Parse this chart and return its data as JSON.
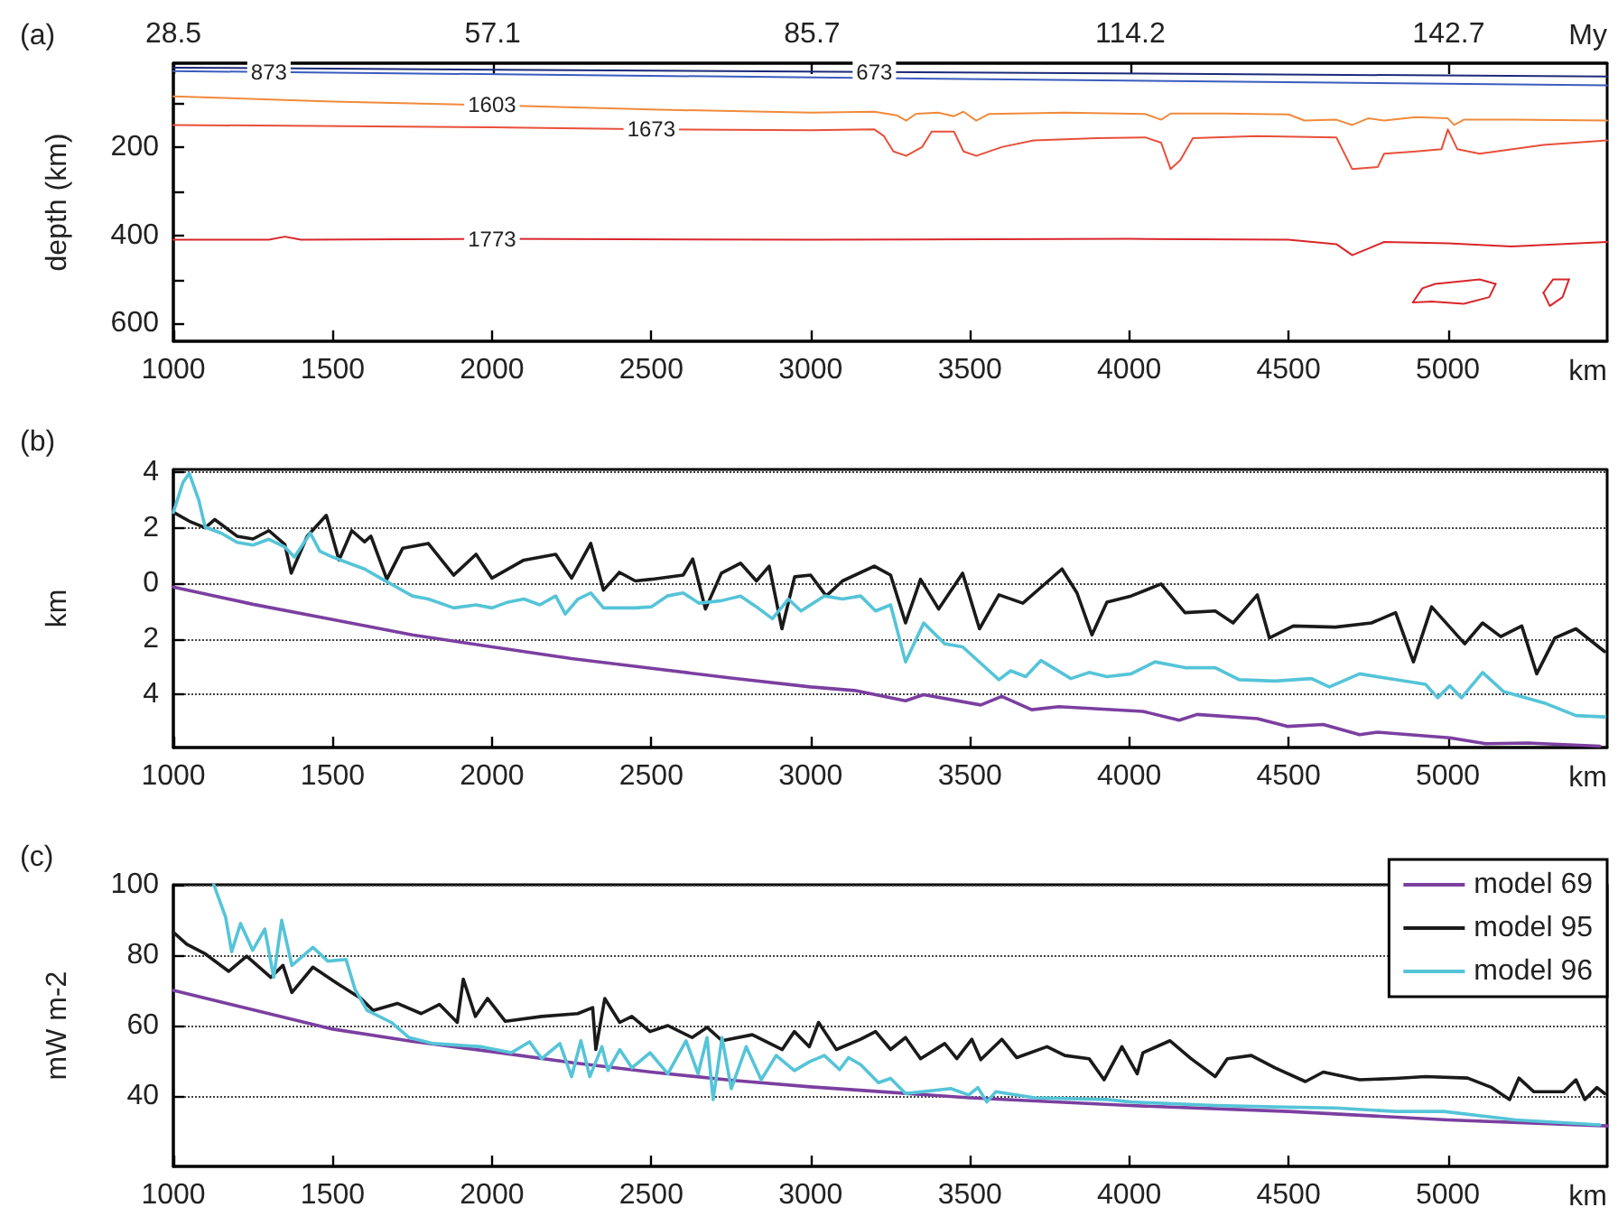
{
  "chart_data": [
    {
      "type": "line",
      "title": "(a)",
      "xlabel": "km",
      "ylabel": "depth (km)",
      "x2label": "My",
      "xlim": [
        1000,
        5500
      ],
      "xticks": [
        1000,
        1500,
        2000,
        2500,
        3000,
        3500,
        4000,
        4500,
        5000
      ],
      "x2lim": [
        28.5,
        156.9
      ],
      "x2ticks": [
        28.5,
        57.1,
        85.7,
        114.2,
        142.7
      ],
      "ylim": [
        640,
        10
      ],
      "yticks": [
        {
          "value": 100,
          "label": null
        },
        200,
        {
          "value": 300,
          "label": null
        },
        400,
        {
          "value": 500,
          "label": null
        },
        600
      ],
      "series": [
        {
          "name": "673",
          "color": "#1c2a7a",
          "x": [
            1000,
            3200,
            5500
          ],
          "values": [
            20,
            30,
            40
          ]
        },
        {
          "name": "873",
          "color": "#3b5bbf",
          "x": [
            1000,
            1300,
            5500
          ],
          "values": [
            28,
            30,
            60
          ]
        },
        {
          "name": "1603",
          "color": "#f08a3c",
          "x": [
            1000,
            1500,
            2000,
            2500,
            3000,
            3200,
            3270,
            3300,
            3330,
            3400,
            3450,
            3480,
            3520,
            3560,
            3800,
            4050,
            4100,
            4130,
            4300,
            4500,
            4550,
            4650,
            4700,
            4750,
            4800,
            4900,
            5000,
            5020,
            5050,
            5200,
            5500
          ],
          "values": [
            85,
            97,
            105,
            115,
            122,
            120,
            128,
            140,
            125,
            122,
            130,
            120,
            140,
            125,
            122,
            125,
            138,
            124,
            124,
            126,
            140,
            138,
            150,
            135,
            140,
            132,
            135,
            150,
            138,
            138,
            140
          ]
        },
        {
          "name": "1673",
          "color": "#e8503a",
          "x": [
            1000,
            2000,
            2500,
            3000,
            3200,
            3230,
            3260,
            3300,
            3350,
            3380,
            3450,
            3480,
            3520,
            3600,
            3700,
            3900,
            4050,
            4100,
            4130,
            4160,
            4200,
            4400,
            4650,
            4700,
            4780,
            4800,
            4900,
            4980,
            5000,
            5030,
            5100,
            5300,
            5500
          ],
          "values": [
            150,
            155,
            160,
            162,
            160,
            175,
            210,
            220,
            200,
            165,
            165,
            210,
            220,
            200,
            185,
            180,
            178,
            190,
            250,
            230,
            180,
            175,
            178,
            250,
            245,
            215,
            210,
            205,
            160,
            205,
            215,
            195,
            185
          ]
        },
        {
          "name": "1773",
          "color": "#d9262a",
          "x": [
            1000,
            1300,
            1350,
            1400,
            2000,
            3000,
            4000,
            4500,
            4650,
            4700,
            4750,
            4800,
            5000,
            5200,
            5500
          ],
          "values": [
            410,
            410,
            403,
            410,
            408,
            410,
            408,
            410,
            420,
            445,
            430,
            415,
            418,
            425,
            415
          ]
        },
        {
          "color": "#d9262a",
          "x": [
            4890,
            4920,
            4960,
            5100,
            5150
          ],
          "values": [
            552,
            520,
            510,
            500,
            510
          ]
        },
        {
          "color": "#d9262a",
          "x": [
            4890,
            4950,
            5050,
            5130,
            5150
          ],
          "values": [
            552,
            550,
            555,
            540,
            510
          ]
        },
        {
          "color": "#d9262a",
          "x": [
            5300,
            5330,
            5380
          ],
          "values": [
            530,
            500,
            500
          ]
        },
        {
          "color": "#d9262a",
          "x": [
            5300,
            5320,
            5360,
            5380
          ],
          "values": [
            530,
            560,
            540,
            500
          ]
        }
      ]
    },
    {
      "type": "line",
      "title": "(b)",
      "xlabel": "km",
      "ylabel": "km",
      "xlim": [
        1000,
        5500
      ],
      "xticks": [
        1000,
        1500,
        2000,
        2500,
        3000,
        3500,
        4000,
        4500,
        5000
      ],
      "ylim": [
        -5.9,
        4.1
      ],
      "yticks": [
        {
          "value": -4,
          "label": "4"
        },
        {
          "value": -2,
          "label": "2"
        },
        0,
        2,
        4
      ],
      "grid": "y",
      "series": [
        {
          "color": "#7b3fa0",
          "x": [
            1000,
            1250,
            1500,
            1750,
            2000,
            2250,
            2500,
            2750,
            3000,
            3138,
            3298,
            3355,
            3534,
            3600,
            3694,
            3779,
            4043,
            4157,
            4213,
            4402,
            4496,
            4609,
            4723,
            4779,
            5006,
            5119,
            5251,
            5477
          ],
          "values": [
            -0.13,
            -0.75,
            -1.3,
            -1.85,
            -2.28,
            -2.7,
            -3.05,
            -3.4,
            -3.72,
            -3.85,
            -4.22,
            -4.0,
            -4.37,
            -4.06,
            -4.54,
            -4.43,
            -4.6,
            -4.92,
            -4.71,
            -4.86,
            -5.14,
            -5.07,
            -5.44,
            -5.35,
            -5.55,
            -5.76,
            -5.74,
            -5.85
          ]
        },
        {
          "color": "#1a1a1a",
          "x": [
            1000,
            1050,
            1100,
            1130,
            1200,
            1250,
            1300,
            1350,
            1370,
            1420,
            1480,
            1520,
            1560,
            1600,
            1620,
            1670,
            1720,
            1800,
            1880,
            1950,
            2000,
            2100,
            2200,
            2250,
            2310,
            2350,
            2400,
            2450,
            2500,
            2600,
            2630,
            2670,
            2720,
            2780,
            2830,
            2870,
            2910,
            2950,
            3000,
            3049,
            3100,
            3200,
            3251,
            3298,
            3345,
            3402,
            3477,
            3530,
            3591,
            3666,
            3789,
            3836,
            3883,
            3930,
            4006,
            4100,
            4175,
            4270,
            4326,
            4402,
            4440,
            4515,
            4647,
            4760,
            4836,
            4892,
            4949,
            5053,
            5109,
            5166,
            5232,
            5279,
            5336,
            5402,
            5492
          ],
          "values": [
            2.56,
            2.24,
            2.0,
            2.3,
            1.7,
            1.6,
            1.9,
            1.4,
            0.37,
            1.7,
            2.45,
            0.84,
            1.9,
            1.5,
            1.7,
            0.15,
            1.27,
            1.44,
            0.3,
            1.05,
            0.19,
            0.84,
            1.05,
            0.19,
            1.44,
            -0.24,
            0.4,
            0.09,
            0.15,
            0.3,
            0.88,
            -0.92,
            0.37,
            0.73,
            0.09,
            0.62,
            -1.63,
            0.24,
            0.3,
            -0.45,
            0.09,
            0.62,
            0.3,
            -1.42,
            0.15,
            -0.92,
            0.37,
            -1.63,
            -0.41,
            -0.71,
            0.52,
            -0.34,
            -1.85,
            -0.67,
            -0.45,
            -0.02,
            -1.05,
            -0.99,
            -1.42,
            -0.41,
            -1.96,
            -1.53,
            -1.57,
            -1.42,
            -1.05,
            -2.82,
            -0.84,
            -2.17,
            -1.42,
            -1.91,
            -1.53,
            -3.25,
            -1.96,
            -1.63,
            -2.45
          ]
        },
        {
          "color": "#55c4d8",
          "x": [
            1000,
            1030,
            1050,
            1080,
            1100,
            1150,
            1200,
            1250,
            1300,
            1350,
            1380,
            1430,
            1460,
            1500,
            1550,
            1600,
            1650,
            1700,
            1750,
            1800,
            1880,
            1950,
            2000,
            2050,
            2100,
            2150,
            2200,
            2230,
            2270,
            2310,
            2350,
            2450,
            2500,
            2550,
            2600,
            2650,
            2720,
            2780,
            2830,
            2880,
            2930,
            2970,
            3043,
            3100,
            3157,
            3204,
            3251,
            3298,
            3355,
            3421,
            3477,
            3591,
            3628,
            3675,
            3723,
            3817,
            3874,
            3930,
            4006,
            4081,
            4175,
            4270,
            4345,
            4458,
            4572,
            4628,
            4723,
            4836,
            4930,
            4968,
            5006,
            5043,
            5109,
            5175,
            5308,
            5402,
            5492
          ],
          "values": [
            2.56,
            3.63,
            3.96,
            2.99,
            2.02,
            1.81,
            1.48,
            1.38,
            1.59,
            1.31,
            0.95,
            1.81,
            1.16,
            0.95,
            0.73,
            0.52,
            0.19,
            -0.13,
            -0.45,
            -0.56,
            -0.88,
            -0.77,
            -0.88,
            -0.67,
            -0.56,
            -0.77,
            -0.45,
            -1.1,
            -0.56,
            -0.34,
            -0.88,
            -0.88,
            -0.84,
            -0.45,
            -0.34,
            -0.71,
            -0.62,
            -0.45,
            -0.84,
            -1.27,
            -0.56,
            -0.99,
            -0.45,
            -0.56,
            -0.45,
            -0.99,
            -0.77,
            -2.82,
            -1.42,
            -2.17,
            -2.28,
            -3.46,
            -3.14,
            -3.35,
            -2.77,
            -3.42,
            -3.2,
            -3.35,
            -3.25,
            -2.82,
            -3.03,
            -3.03,
            -3.46,
            -3.51,
            -3.42,
            -3.72,
            -3.25,
            -3.46,
            -3.63,
            -4.11,
            -3.68,
            -4.11,
            -3.2,
            -3.89,
            -4.32,
            -4.75,
            -4.8
          ]
        }
      ]
    },
    {
      "type": "line",
      "title": "(c)",
      "xlabel": "km",
      "ylabel": "mW m-2",
      "xlim": [
        1000,
        5500
      ],
      "xticks": [
        1000,
        1500,
        2000,
        2500,
        3000,
        3500,
        4000,
        4500,
        5000
      ],
      "ylim": [
        20,
        100
      ],
      "yticks": [
        40,
        60,
        80,
        100
      ],
      "grid": "y",
      "legend": "top right",
      "series": [
        {
          "name": "model 69",
          "color": "#7b3fa0",
          "x": [
            1000,
            1250,
            1500,
            1750,
            2000,
            2250,
            2500,
            2750,
            3000,
            3500,
            4000,
            4500,
            5000,
            5500
          ],
          "values": [
            70,
            64.5,
            59,
            55.5,
            52.6,
            49.5,
            46.8,
            44.5,
            42.6,
            39.5,
            37.3,
            35.6,
            33.2,
            31.5
          ]
        },
        {
          "name": "model 95",
          "color": "#1a1a1a",
          "x": [
            1000,
            1042,
            1098,
            1174,
            1230,
            1306,
            1344,
            1372,
            1438,
            1514,
            1589,
            1627,
            1703,
            1778,
            1835,
            1891,
            1910,
            1948,
            1986,
            2042,
            2156,
            2269,
            2316,
            2326,
            2354,
            2401,
            2439,
            2496,
            2552,
            2628,
            2675,
            2722,
            2817,
            2911,
            2949,
            2996,
            3025,
            3081,
            3157,
            3204,
            3251,
            3298,
            3345,
            3421,
            3459,
            3506,
            3534,
            3600,
            3647,
            3742,
            3798,
            3874,
            3921,
            3977,
            4025,
            4043,
            4128,
            4194,
            4270,
            4308,
            4383,
            4458,
            4553,
            4609,
            4723,
            4836,
            4930,
            5062,
            5138,
            5194,
            5223,
            5270,
            5364,
            5402,
            5430,
            5468,
            5492
          ],
          "values": [
            86.5,
            83.1,
            80.5,
            75.4,
            79.7,
            73.7,
            77.1,
            69.4,
            76.6,
            72,
            67.7,
            64.3,
            66.3,
            63.4,
            66,
            60.9,
            73.2,
            62.6,
            67.7,
            61.2,
            62.6,
            63.4,
            65.1,
            53.2,
            67.7,
            60.9,
            62.6,
            58.3,
            60,
            56.6,
            59.5,
            55.7,
            57.4,
            53.2,
            58.3,
            54,
            60.9,
            53.2,
            56.1,
            58.3,
            53.2,
            56.6,
            50.6,
            54.9,
            50.6,
            56.1,
            50.3,
            56.1,
            50.9,
            54,
            51.5,
            50.6,
            44.6,
            54,
            46.3,
            52.3,
            55.7,
            50.6,
            45.5,
            50.6,
            51.5,
            48,
            44.1,
            46.8,
            44.6,
            45,
            45.5,
            45.1,
            42.4,
            39,
            45.1,
            41.2,
            41.2,
            44.6,
            39,
            42.4,
            40.7
          ]
        },
        {
          "name": "model 96",
          "color": "#55c4d8",
          "x": [
            1127,
            1164,
            1183,
            1211,
            1249,
            1287,
            1315,
            1340,
            1372,
            1438,
            1485,
            1542,
            1570,
            1608,
            1684,
            1740,
            1816,
            1967,
            2061,
            2118,
            2156,
            2213,
            2250,
            2279,
            2307,
            2345,
            2364,
            2401,
            2439,
            2496,
            2552,
            2609,
            2647,
            2675,
            2694,
            2722,
            2751,
            2798,
            2845,
            2892,
            2949,
            2996,
            3043,
            3091,
            3119,
            3157,
            3213,
            3251,
            3298,
            3440,
            3496,
            3525,
            3553,
            3581,
            3704,
            3930,
            4006,
            4270,
            4458,
            4647,
            4836,
            4987,
            5213,
            5477
          ],
          "values": [
            100,
            90.8,
            81,
            89,
            81.4,
            87.4,
            73.7,
            89.9,
            77.1,
            82.2,
            78.3,
            78.8,
            70.3,
            64.3,
            60.9,
            56.6,
            54.9,
            54,
            52.3,
            55.4,
            50.6,
            54.9,
            45.5,
            55.7,
            45.5,
            54,
            47.2,
            53.2,
            48,
            52.3,
            46.3,
            55.7,
            46.3,
            56.6,
            39,
            56.6,
            42.1,
            54,
            44.6,
            51.5,
            47.2,
            49.7,
            51.5,
            47.5,
            50.9,
            48.9,
            43.8,
            45,
            40.7,
            42.1,
            40.3,
            42.4,
            38.3,
            41.2,
            39.5,
            39,
            38.3,
            37.3,
            36.9,
            36.6,
            35.6,
            35.6,
            33.2,
            31.8
          ]
        }
      ]
    }
  ]
}
